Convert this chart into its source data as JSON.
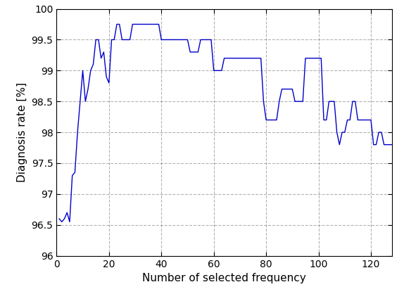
{
  "x": [
    1,
    2,
    3,
    4,
    5,
    6,
    7,
    8,
    9,
    10,
    11,
    12,
    13,
    14,
    15,
    16,
    17,
    18,
    19,
    20,
    21,
    22,
    23,
    24,
    25,
    26,
    27,
    28,
    29,
    30,
    31,
    32,
    33,
    34,
    35,
    36,
    37,
    38,
    39,
    40,
    41,
    42,
    43,
    44,
    45,
    46,
    47,
    48,
    49,
    50,
    51,
    52,
    53,
    54,
    55,
    56,
    57,
    58,
    59,
    60,
    61,
    62,
    63,
    64,
    65,
    66,
    67,
    68,
    69,
    70,
    71,
    72,
    73,
    74,
    75,
    76,
    77,
    78,
    79,
    80,
    81,
    82,
    83,
    84,
    85,
    86,
    87,
    88,
    89,
    90,
    91,
    92,
    93,
    94,
    95,
    96,
    97,
    98,
    99,
    100,
    101,
    102,
    103,
    104,
    105,
    106,
    107,
    108,
    109,
    110,
    111,
    112,
    113,
    114,
    115,
    116,
    117,
    118,
    119,
    120,
    121,
    122,
    123,
    124,
    125,
    126,
    127,
    128
  ],
  "y": [
    96.6,
    96.55,
    96.6,
    96.7,
    96.55,
    97.3,
    97.35,
    98.0,
    98.5,
    99.0,
    98.5,
    98.7,
    99.0,
    99.1,
    99.5,
    99.5,
    99.2,
    99.3,
    98.9,
    98.8,
    99.5,
    99.5,
    99.75,
    99.75,
    99.5,
    99.5,
    99.5,
    99.5,
    99.75,
    99.75,
    99.75,
    99.75,
    99.75,
    99.75,
    99.75,
    99.75,
    99.75,
    99.75,
    99.75,
    99.5,
    99.5,
    99.5,
    99.5,
    99.5,
    99.5,
    99.5,
    99.5,
    99.5,
    99.5,
    99.5,
    99.3,
    99.3,
    99.3,
    99.3,
    99.5,
    99.5,
    99.5,
    99.5,
    99.5,
    99.0,
    99.0,
    99.0,
    99.0,
    99.2,
    99.2,
    99.2,
    99.2,
    99.2,
    99.2,
    99.2,
    99.2,
    99.2,
    99.2,
    99.2,
    99.2,
    99.2,
    99.2,
    99.2,
    98.5,
    98.2,
    98.2,
    98.2,
    98.2,
    98.2,
    98.5,
    98.7,
    98.7,
    98.7,
    98.7,
    98.7,
    98.5,
    98.5,
    98.5,
    98.5,
    99.2,
    99.2,
    99.2,
    99.2,
    99.2,
    99.2,
    99.2,
    98.2,
    98.2,
    98.5,
    98.5,
    98.5,
    98.0,
    97.8,
    98.0,
    98.0,
    98.2,
    98.2,
    98.5,
    98.5,
    98.2,
    98.2,
    98.2,
    98.2,
    98.2,
    98.2,
    97.8,
    97.8,
    98.0,
    98.0,
    97.8,
    97.8,
    97.8,
    97.8
  ],
  "line_color": "#0000cc",
  "line_width": 1.0,
  "xlim": [
    0,
    128
  ],
  "ylim": [
    96,
    100
  ],
  "xticks": [
    0,
    20,
    40,
    60,
    80,
    100,
    120
  ],
  "yticks": [
    96,
    96.5,
    97,
    97.5,
    98,
    98.5,
    99,
    99.5,
    100
  ],
  "xlabel": "Number of selected frequency",
  "ylabel": "Diagnosis rate [%]",
  "grid_color": "#000000",
  "grid_linestyle": "--",
  "grid_alpha": 0.3,
  "bg_color": "#ffffff",
  "tick_fontsize": 10,
  "label_fontsize": 11
}
